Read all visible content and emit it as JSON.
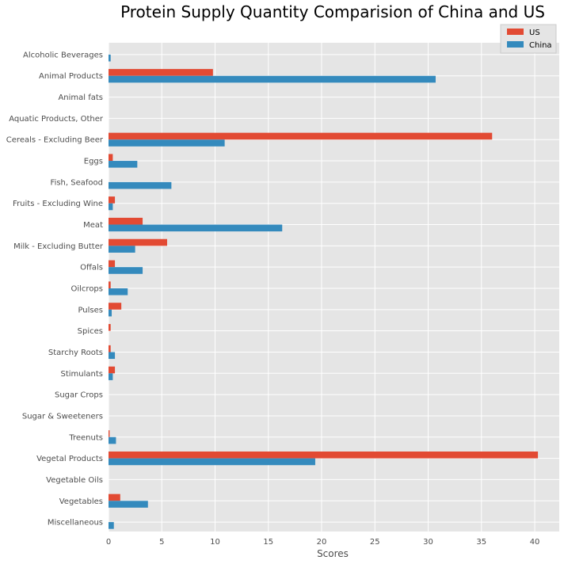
{
  "chart_data": {
    "type": "bar",
    "orientation": "horizontal",
    "title": "Protein Supply Quantity Comparision of China and US",
    "xlabel": "Scores",
    "ylabel": "",
    "xlim": [
      0,
      42.3
    ],
    "xticks": [
      0,
      5,
      10,
      15,
      20,
      25,
      30,
      35,
      40
    ],
    "grid": true,
    "legend_position": "top-right",
    "categories": [
      "Alcoholic Beverages",
      "Animal Products",
      "Animal fats",
      "Aquatic Products, Other",
      "Cereals - Excluding Beer",
      "Eggs",
      "Fish, Seafood",
      "Fruits - Excluding Wine",
      "Meat",
      "Milk - Excluding Butter",
      "Offals",
      "Oilcrops",
      "Pulses",
      "Spices",
      "Starchy Roots",
      "Stimulants",
      "Sugar Crops",
      "Sugar & Sweeteners",
      "Treenuts",
      "Vegetal Products",
      "Vegetable Oils",
      "Vegetables",
      "Miscellaneous"
    ],
    "series": [
      {
        "name": "US",
        "color": "#E24A33",
        "values": [
          0,
          9.8,
          0,
          0,
          36.0,
          0.4,
          0,
          0.6,
          3.2,
          5.5,
          0.6,
          0.2,
          1.2,
          0.2,
          0.2,
          0.6,
          0,
          0,
          0.1,
          40.3,
          0,
          1.1,
          0
        ]
      },
      {
        "name": "China",
        "color": "#348ABD",
        "values": [
          0.2,
          30.7,
          0,
          0,
          10.9,
          2.7,
          5.9,
          0.4,
          16.3,
          2.5,
          3.2,
          1.8,
          0.3,
          0,
          0.6,
          0.4,
          0,
          0,
          0.7,
          19.4,
          0,
          3.7,
          0.5
        ]
      }
    ]
  }
}
